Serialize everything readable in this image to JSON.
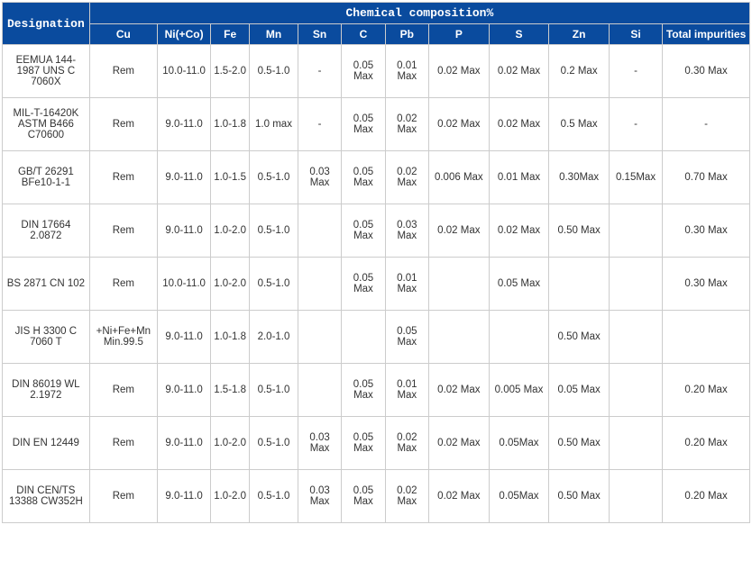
{
  "table": {
    "header": {
      "designation": "Designation",
      "composition": "Chemical composition%",
      "cols": [
        "Cu",
        "Ni(+Co)",
        "Fe",
        "Mn",
        "Sn",
        "C",
        "Pb",
        "P",
        "S",
        "Zn",
        "Si",
        "Total impurities"
      ]
    },
    "rows": [
      {
        "des": "EEMUA 144-1987 UNS C 7060X",
        "cu": "Rem",
        "ni": "10.0-11.0",
        "fe": "1.5-2.0",
        "mn": "0.5-1.0",
        "sn": "-",
        "c": "0.05 Max",
        "pb": "0.01 Max",
        "p": "0.02 Max",
        "s": "0.02 Max",
        "zn": "0.2 Max",
        "si": "-",
        "tot": "0.30 Max"
      },
      {
        "des": "MIL-T-16420K ASTM B466 C70600",
        "cu": "Rem",
        "ni": "9.0-11.0",
        "fe": "1.0-1.8",
        "mn": "1.0 max",
        "sn": "-",
        "c": "0.05 Max",
        "pb": "0.02 Max",
        "p": "0.02 Max",
        "s": "0.02 Max",
        "zn": "0.5 Max",
        "si": "-",
        "tot": "-"
      },
      {
        "des": "GB/T 26291 BFe10-1-1",
        "cu": "Rem",
        "ni": "9.0-11.0",
        "fe": "1.0-1.5",
        "mn": "0.5-1.0",
        "sn": "0.03 Max",
        "c": "0.05 Max",
        "pb": "0.02 Max",
        "p": "0.006 Max",
        "s": "0.01 Max",
        "zn": "0.30Max",
        "si": "0.15Max",
        "tot": "0.70 Max"
      },
      {
        "des": "DIN 17664 2.0872",
        "cu": "Rem",
        "ni": "9.0-11.0",
        "fe": "1.0-2.0",
        "mn": "0.5-1.0",
        "sn": "",
        "c": "0.05 Max",
        "pb": "0.03 Max",
        "p": "0.02 Max",
        "s": "0.02 Max",
        "zn": "0.50 Max",
        "si": "",
        "tot": "0.30 Max"
      },
      {
        "des": "BS 2871 CN 102",
        "cu": "Rem",
        "ni": "10.0-11.0",
        "fe": "1.0-2.0",
        "mn": "0.5-1.0",
        "sn": "",
        "c": "0.05 Max",
        "pb": "0.01 Max",
        "p": "",
        "s": "0.05 Max",
        "zn": "",
        "si": "",
        "tot": "0.30 Max"
      },
      {
        "des": "JIS H 3300 C 7060 T",
        "cu": "+Ni+Fe+Mn Min.99.5",
        "ni": "9.0-11.0",
        "fe": "1.0-1.8",
        "mn": "2.0-1.0",
        "sn": "",
        "c": "",
        "pb": "0.05 Max",
        "p": "",
        "s": "",
        "zn": "0.50 Max",
        "si": "",
        "tot": ""
      },
      {
        "des": "DIN 86019 WL 2.1972",
        "cu": "Rem",
        "ni": "9.0-11.0",
        "fe": "1.5-1.8",
        "mn": "0.5-1.0",
        "sn": "",
        "c": "0.05 Max",
        "pb": "0.01 Max",
        "p": "0.02 Max",
        "s": "0.005 Max",
        "zn": "0.05 Max",
        "si": "",
        "tot": "0.20 Max"
      },
      {
        "des": "DIN EN 12449",
        "cu": "Rem",
        "ni": "9.0-11.0",
        "fe": "1.0-2.0",
        "mn": "0.5-1.0",
        "sn": "0.03 Max",
        "c": "0.05 Max",
        "pb": "0.02 Max",
        "p": "0.02 Max",
        "s": "0.05Max",
        "zn": "0.50 Max",
        "si": "",
        "tot": "0.20 Max"
      },
      {
        "des": "DIN CEN/TS 13388 CW352H",
        "cu": "Rem",
        "ni": "9.0-11.0",
        "fe": "1.0-2.0",
        "mn": "0.5-1.0",
        "sn": "0.03 Max",
        "c": "0.05 Max",
        "pb": "0.02 Max",
        "p": "0.02 Max",
        "s": "0.05Max",
        "zn": "0.50 Max",
        "si": "",
        "tot": "0.20 Max"
      }
    ]
  }
}
